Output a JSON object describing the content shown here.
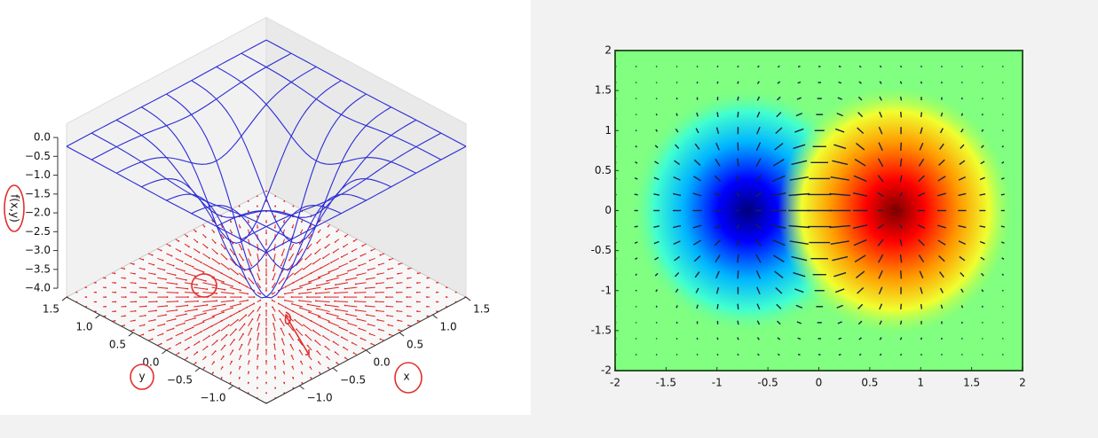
{
  "chart_data": [
    {
      "type": "surface3d",
      "z_label": "f(x,y)",
      "x_label": "x",
      "y_label": "y",
      "xlim": [
        -1.5,
        1.5
      ],
      "ylim": [
        -1.5,
        1.5
      ],
      "zlim": [
        -4,
        0
      ],
      "xticks": [
        {
          "value": -1,
          "label": "−1.0"
        },
        {
          "value": -0.5,
          "label": "−0.5"
        },
        {
          "value": 0,
          "label": "0.0"
        },
        {
          "value": 0.5,
          "label": "0.5"
        },
        {
          "value": 1,
          "label": "1.0"
        },
        {
          "value": 1.5,
          "label": "1.5"
        }
      ],
      "yticks": [
        {
          "value": -1,
          "label": "−1.0"
        },
        {
          "value": -0.5,
          "label": "−0.5"
        },
        {
          "value": 0,
          "label": "0.0"
        },
        {
          "value": 0.5,
          "label": "0.5"
        },
        {
          "value": 1,
          "label": "1.0"
        },
        {
          "value": 1.5,
          "label": "1.5"
        }
      ],
      "zticks": [
        {
          "value": 0,
          "label": "0.0"
        },
        {
          "value": -0.5,
          "label": "−0.5"
        },
        {
          "value": -1,
          "label": "−1.0"
        },
        {
          "value": -1.5,
          "label": "−1.5"
        },
        {
          "value": -2,
          "label": "−2.0"
        },
        {
          "value": -2.5,
          "label": "−2.5"
        },
        {
          "value": -3,
          "label": "−3.0"
        },
        {
          "value": -3.5,
          "label": "−3.5"
        },
        {
          "value": -4,
          "label": "−4.0"
        }
      ],
      "color": "#2b2bd6",
      "arrow_color": "#e02020"
    },
    {
      "type": "heatmap",
      "colormap": "jet",
      "arrow_color": "#1a2440",
      "xlim": [
        -2,
        2
      ],
      "ylim": [
        -2,
        2
      ],
      "xticks": [
        -2,
        -1.5,
        -1,
        -0.5,
        0,
        0.5,
        1,
        1.5,
        2
      ],
      "yticks": [
        -2,
        -1.5,
        -1,
        -0.5,
        0,
        0.5,
        1,
        1.5,
        2
      ]
    }
  ]
}
